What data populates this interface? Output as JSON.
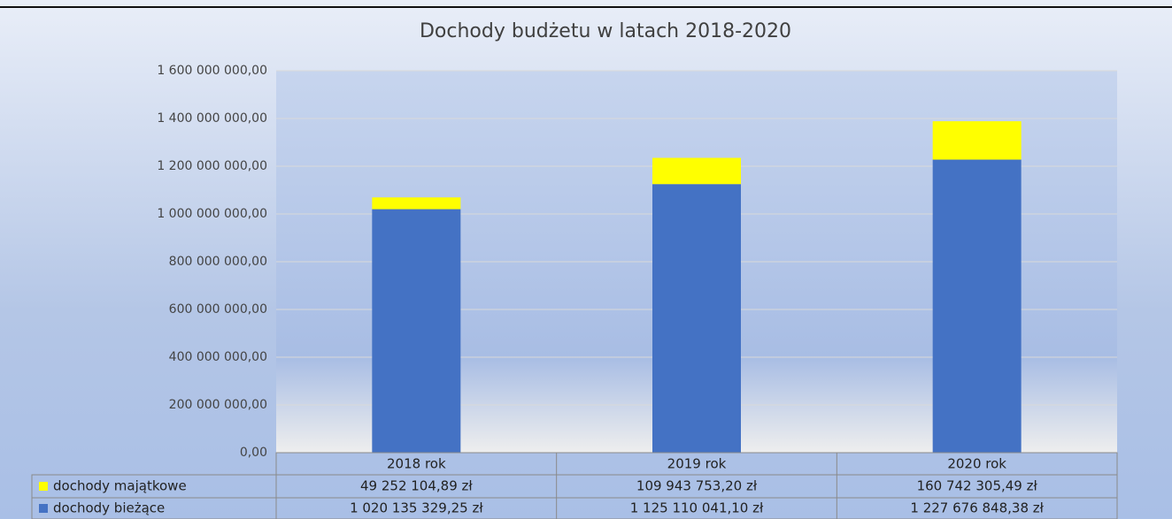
{
  "chart_data": {
    "type": "bar",
    "stacked": true,
    "title": "Dochody budżetu w latach 2018-2020",
    "categories": [
      "2018 rok",
      "2019 rok",
      "2020 rok"
    ],
    "series": [
      {
        "name": "dochody majątkowe",
        "color": "#ffff00",
        "values": [
          49252104.89,
          109943753.2,
          160742305.49
        ],
        "value_labels": [
          "49 252 104,89 zł",
          "109 943 753,20 zł",
          "160 742 305,49 zł"
        ]
      },
      {
        "name": "dochody bieżące",
        "color": "#4472c4",
        "values": [
          1020135329.25,
          1125110041.1,
          1227676848.38
        ],
        "value_labels": [
          "1 020 135 329,25 zł",
          "1 125 110 041,10 zł",
          "1 227 676 848,38 zł"
        ]
      }
    ],
    "ylim": [
      0,
      1600000000
    ],
    "yticks": [
      {
        "value": 0,
        "label": "0,00"
      },
      {
        "value": 200000000,
        "label": "200 000 000,00"
      },
      {
        "value": 400000000,
        "label": "400 000 000,00"
      },
      {
        "value": 600000000,
        "label": "600 000 000,00"
      },
      {
        "value": 800000000,
        "label": "800 000 000,00"
      },
      {
        "value": 1000000000,
        "label": "1 000 000 000,00"
      },
      {
        "value": 1200000000,
        "label": "1 200 000 000,00"
      },
      {
        "value": 1400000000,
        "label": "1 400 000 000,00"
      },
      {
        "value": 1600000000,
        "label": "1 600 000 000,00"
      }
    ],
    "grid": true
  }
}
